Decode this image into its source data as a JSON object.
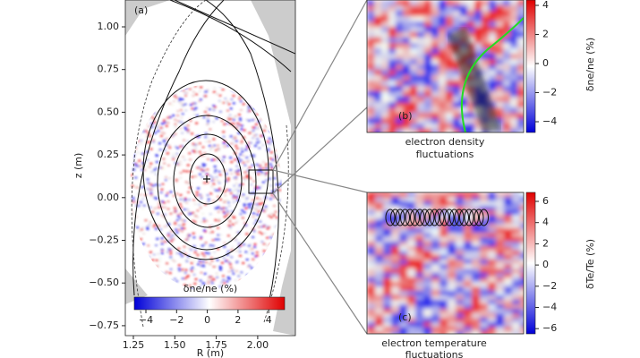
{
  "panel_a": {
    "label": "(a)",
    "y_axis_label": "z (m)",
    "x_axis_label": "R (m)",
    "yticks": [
      "1.00",
      "0.75",
      "0.50",
      "0.25",
      "0.00",
      "−0.25",
      "−0.50",
      "−0.75"
    ],
    "xticks": [
      "1.25",
      "1.50",
      "1.75",
      "2.00"
    ],
    "colorbar": {
      "label": "δne/ne (%)",
      "ticks": [
        "−4",
        "−2",
        "0",
        "2",
        "4"
      ]
    }
  },
  "panel_b": {
    "label": "(b)",
    "caption": [
      "electron density",
      "fluctuations"
    ],
    "colorbar": {
      "label": "δne/ne (%)",
      "ticks": [
        "4",
        "2",
        "0",
        "−2",
        "−4"
      ]
    }
  },
  "panel_c": {
    "label": "(c)",
    "caption": [
      "electron temperature",
      "fluctuations"
    ],
    "colorbar": {
      "label": "δTe/Te (%)",
      "ticks": [
        "6",
        "4",
        "2",
        "0",
        "−2",
        "−4",
        "−6"
      ]
    }
  }
}
